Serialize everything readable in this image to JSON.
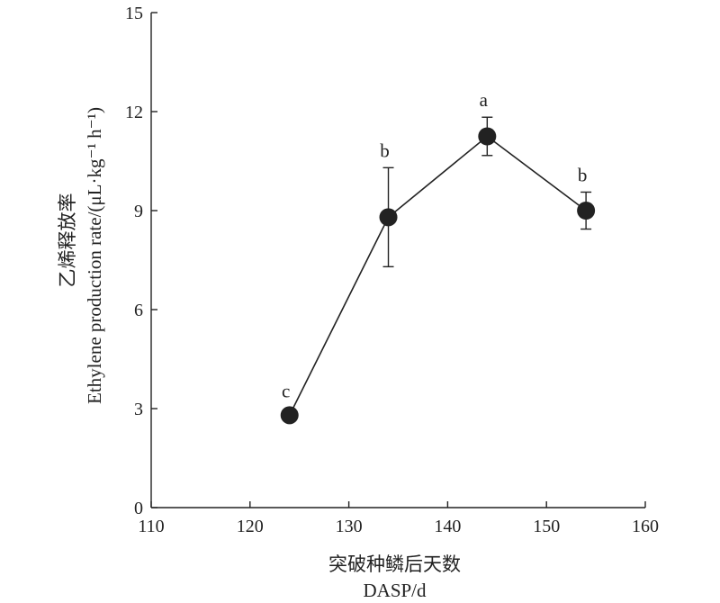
{
  "chart_data": {
    "type": "line",
    "xlabel_line1": "突破种鳞后天数",
    "xlabel_line2": "DASP/d",
    "ylabel_line1": "乙烯释放率",
    "ylabel_line2": "Ethylene production rate/(μL·kg⁻¹ h⁻¹)",
    "xlim": [
      110,
      160
    ],
    "ylim": [
      0,
      15
    ],
    "xticks": [
      110,
      120,
      130,
      140,
      150,
      160
    ],
    "yticks": [
      0,
      3,
      6,
      9,
      12,
      15
    ],
    "grid": false,
    "points": [
      {
        "x": 124,
        "y": 2.8,
        "err": 0,
        "label": "c"
      },
      {
        "x": 134,
        "y": 8.8,
        "err": 1.5,
        "label": "b"
      },
      {
        "x": 144,
        "y": 11.25,
        "err": 0.58,
        "label": "a"
      },
      {
        "x": 154,
        "y": 9.0,
        "err": 0.56,
        "label": "b"
      }
    ]
  }
}
